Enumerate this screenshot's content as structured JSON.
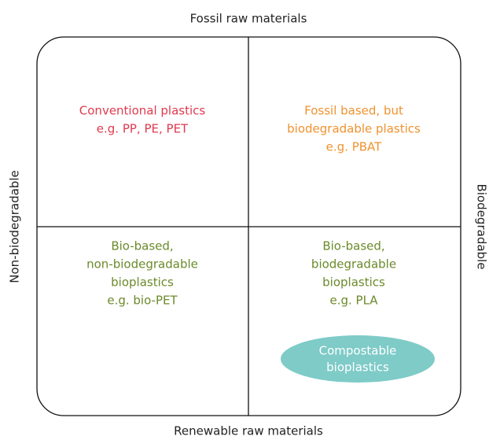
{
  "axes": {
    "top": "Fossil raw materials",
    "bottom": "Renewable raw materials",
    "left": "Non-biodegradable",
    "right": "Biodegradable"
  },
  "quadrants": [
    {
      "lines": [
        "Conventional plastics",
        "e.g. PP, PE, PET"
      ]
    },
    {
      "lines": [
        "Fossil based, but",
        "biodegradable plastics",
        "e.g. PBAT"
      ]
    },
    {
      "lines": [
        "Bio-based,",
        "non-biodegradable",
        "bioplastics",
        "e.g. bio-PET"
      ]
    },
    {
      "lines": [
        "Bio-based,",
        "biodegradable",
        "bioplastics",
        "e.g. PLA"
      ]
    }
  ],
  "highlight": {
    "lines": [
      "Compostable",
      "bioplastics"
    ]
  }
}
